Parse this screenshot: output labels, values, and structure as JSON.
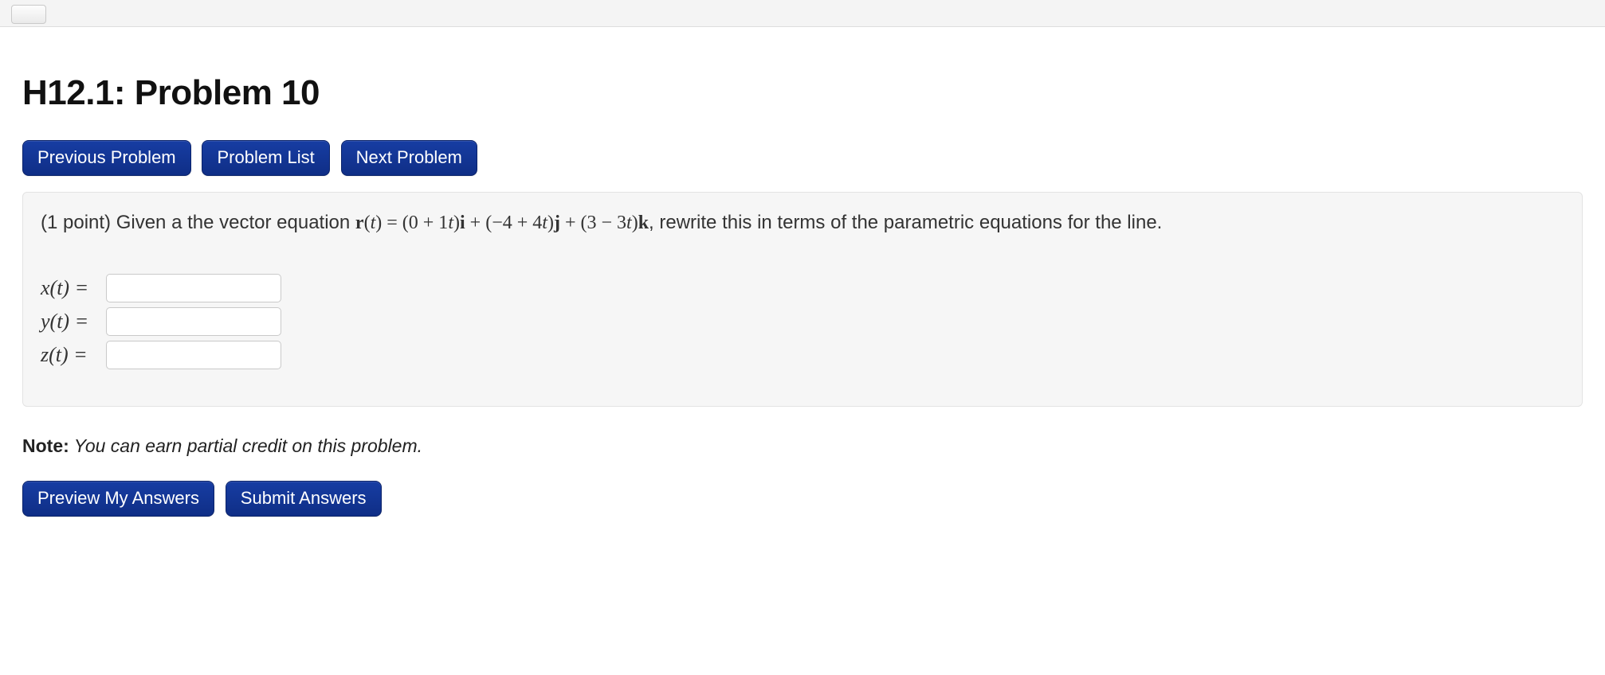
{
  "page": {
    "title": "H12.1: Problem 10"
  },
  "nav": {
    "prev": "Previous Problem",
    "list": "Problem List",
    "next": "Next Problem"
  },
  "problem": {
    "points_prefix": "(1 point) Given a the vector equation ",
    "equation": {
      "r": "r",
      "t": "t",
      "lp": "(",
      "rp": ")",
      "eq": " = ",
      "term1_a": "(0 + 1",
      "term1_b": ")",
      "i": "i",
      "plus1": " + ",
      "term2_a": "(−4 + 4",
      "term2_b": ")",
      "j": "j",
      "plus2": " + ",
      "term3_a": "(3 − 3",
      "term3_b": ")",
      "k": "k"
    },
    "tail": ", rewrite this in terms of the parametric equations for the line.",
    "rows": {
      "x_label": "x(t) =",
      "y_label": "y(t) =",
      "z_label": "z(t) =",
      "x_value": "",
      "y_value": "",
      "z_value": ""
    }
  },
  "note": {
    "label": "Note:",
    "msg": " You can earn partial credit on this problem."
  },
  "actions": {
    "preview": "Preview My Answers",
    "submit": "Submit Answers"
  },
  "colors": {
    "button_bg_top": "#173da3",
    "button_bg_bottom": "#0f2e86",
    "box_bg": "#f6f6f6",
    "box_border": "#e3e3e3"
  }
}
